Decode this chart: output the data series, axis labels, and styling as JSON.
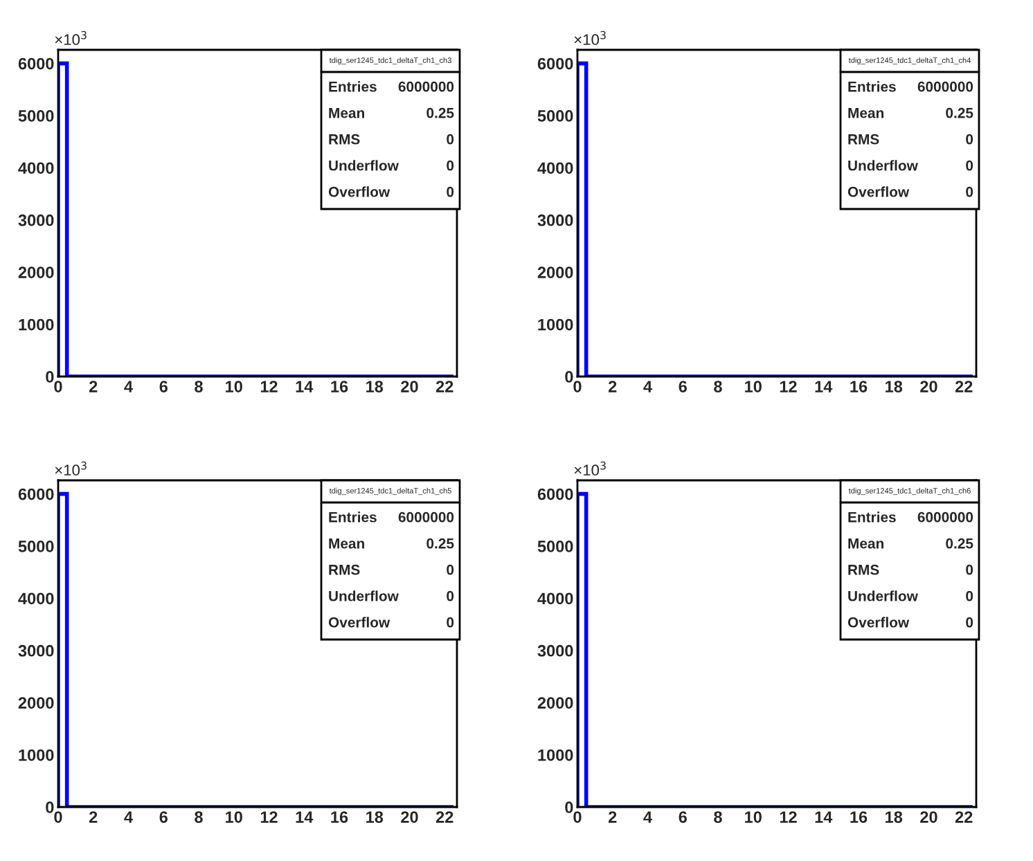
{
  "chart_data": [
    {
      "type": "histogram",
      "title": "tdig_ser1245_tdc1_deltaT_ch1_ch3",
      "ylabel": "×10$^{3}$",
      "color": "#0000ff",
      "bins": [
        0,
        0.5,
        1,
        1.5,
        2,
        2.5,
        3,
        3.5,
        4,
        4.5,
        5,
        5.5,
        6,
        6.5,
        7,
        7.5,
        8,
        8.5,
        9,
        9.5,
        10,
        10.5,
        11,
        11.5,
        12,
        12.5,
        13,
        13.5,
        14,
        14.5,
        15,
        15.5,
        16,
        16.5,
        17,
        17.5,
        18,
        18.5,
        19,
        19.5,
        20,
        20.5,
        21,
        21.5,
        22,
        22.5
      ],
      "values": [
        6000,
        0,
        0,
        0,
        0,
        0,
        0,
        0,
        0,
        0,
        0,
        0,
        0,
        0,
        0,
        0,
        0,
        0,
        0,
        0,
        0,
        0,
        0,
        0,
        0,
        0,
        0,
        0,
        0,
        0,
        0,
        0,
        0,
        0,
        0,
        0,
        0,
        0,
        0,
        0,
        0,
        0,
        0,
        0,
        0
      ],
      "xlim": [
        0,
        22.7
      ],
      "xticks": [
        0,
        2,
        4,
        6,
        8,
        10,
        12,
        14,
        16,
        18,
        20,
        22
      ],
      "ylim": [
        0,
        6260
      ],
      "yticks": [
        0,
        1000,
        2000,
        3000,
        4000,
        5000,
        6000
      ],
      "annotations": [
        "Entries",
        "6000000",
        "Mean",
        "0.25",
        "RMS",
        "0",
        "Underflow",
        "0",
        "Overflow",
        "0"
      ]
    },
    {
      "type": "histogram",
      "title": "tdig_ser1245_tdc1_deltaT_ch1_ch4",
      "ylabel": "×10$^{3}$",
      "color": "#0000ff",
      "bins": [
        0,
        0.5,
        1,
        1.5,
        2,
        2.5,
        3,
        3.5,
        4,
        4.5,
        5,
        5.5,
        6,
        6.5,
        7,
        7.5,
        8,
        8.5,
        9,
        9.5,
        10,
        10.5,
        11,
        11.5,
        12,
        12.5,
        13,
        13.5,
        14,
        14.5,
        15,
        15.5,
        16,
        16.5,
        17,
        17.5,
        18,
        18.5,
        19,
        19.5,
        20,
        20.5,
        21,
        21.5,
        22,
        22.5
      ],
      "values": [
        6000,
        0,
        0,
        0,
        0,
        0,
        0,
        0,
        0,
        0,
        0,
        0,
        0,
        0,
        0,
        0,
        0,
        0,
        0,
        0,
        0,
        0,
        0,
        0,
        0,
        0,
        0,
        0,
        0,
        0,
        0,
        0,
        0,
        0,
        0,
        0,
        0,
        0,
        0,
        0,
        0,
        0,
        0,
        0,
        0
      ],
      "xlim": [
        0,
        22.7
      ],
      "xticks": [
        0,
        2,
        4,
        6,
        8,
        10,
        12,
        14,
        16,
        18,
        20,
        22
      ],
      "ylim": [
        0,
        6260
      ],
      "yticks": [
        0,
        1000,
        2000,
        3000,
        4000,
        5000,
        6000
      ],
      "annotations": [
        "Entries",
        "6000000",
        "Mean",
        "0.25",
        "RMS",
        "0",
        "Underflow",
        "0",
        "Overflow",
        "0"
      ]
    },
    {
      "type": "histogram",
      "title": "tdig_ser1245_tdc1_deltaT_ch1_ch5",
      "ylabel": "×10$^{3}$",
      "color": "#0000ff",
      "bins": [
        0,
        0.5,
        1,
        1.5,
        2,
        2.5,
        3,
        3.5,
        4,
        4.5,
        5,
        5.5,
        6,
        6.5,
        7,
        7.5,
        8,
        8.5,
        9,
        9.5,
        10,
        10.5,
        11,
        11.5,
        12,
        12.5,
        13,
        13.5,
        14,
        14.5,
        15,
        15.5,
        16,
        16.5,
        17,
        17.5,
        18,
        18.5,
        19,
        19.5,
        20,
        20.5,
        21,
        21.5,
        22,
        22.5
      ],
      "values": [
        6000,
        0,
        0,
        0,
        0,
        0,
        0,
        0,
        0,
        0,
        0,
        0,
        0,
        0,
        0,
        0,
        0,
        0,
        0,
        0,
        0,
        0,
        0,
        0,
        0,
        0,
        0,
        0,
        0,
        0,
        0,
        0,
        0,
        0,
        0,
        0,
        0,
        0,
        0,
        0,
        0,
        0,
        0,
        0,
        0
      ],
      "xlim": [
        0,
        22.7
      ],
      "xticks": [
        0,
        2,
        4,
        6,
        8,
        10,
        12,
        14,
        16,
        18,
        20,
        22
      ],
      "ylim": [
        0,
        6260
      ],
      "yticks": [
        0,
        1000,
        2000,
        3000,
        4000,
        5000,
        6000
      ],
      "annotations": [
        "Entries",
        "6000000",
        "Mean",
        "0.25",
        "RMS",
        "0",
        "Underflow",
        "0",
        "Overflow",
        "0"
      ]
    },
    {
      "type": "histogram",
      "title": "tdig_ser1245_tdc1_deltaT_ch1_ch6",
      "ylabel": "×10$^{3}$",
      "color": "#0000ff",
      "bins": [
        0,
        0.5,
        1,
        1.5,
        2,
        2.5,
        3,
        3.5,
        4,
        4.5,
        5,
        5.5,
        6,
        6.5,
        7,
        7.5,
        8,
        8.5,
        9,
        9.5,
        10,
        10.5,
        11,
        11.5,
        12,
        12.5,
        13,
        13.5,
        14,
        14.5,
        15,
        15.5,
        16,
        16.5,
        17,
        17.5,
        18,
        18.5,
        19,
        19.5,
        20,
        20.5,
        21,
        21.5,
        22,
        22.5
      ],
      "values": [
        6000,
        0,
        0,
        0,
        0,
        0,
        0,
        0,
        0,
        0,
        0,
        0,
        0,
        0,
        0,
        0,
        0,
        0,
        0,
        0,
        0,
        0,
        0,
        0,
        0,
        0,
        0,
        0,
        0,
        0,
        0,
        0,
        0,
        0,
        0,
        0,
        0,
        0,
        0,
        0,
        0,
        0,
        0,
        0,
        0
      ],
      "xlim": [
        0,
        22.7
      ],
      "xticks": [
        0,
        2,
        4,
        6,
        8,
        10,
        12,
        14,
        16,
        18,
        20,
        22
      ],
      "ylim": [
        0,
        6260
      ],
      "yticks": [
        0,
        1000,
        2000,
        3000,
        4000,
        5000,
        6000
      ],
      "annotations": [
        "Entries",
        "6000000",
        "Mean",
        "0.25",
        "RMS",
        "0",
        "Underflow",
        "0",
        "Overflow",
        "0"
      ]
    }
  ]
}
